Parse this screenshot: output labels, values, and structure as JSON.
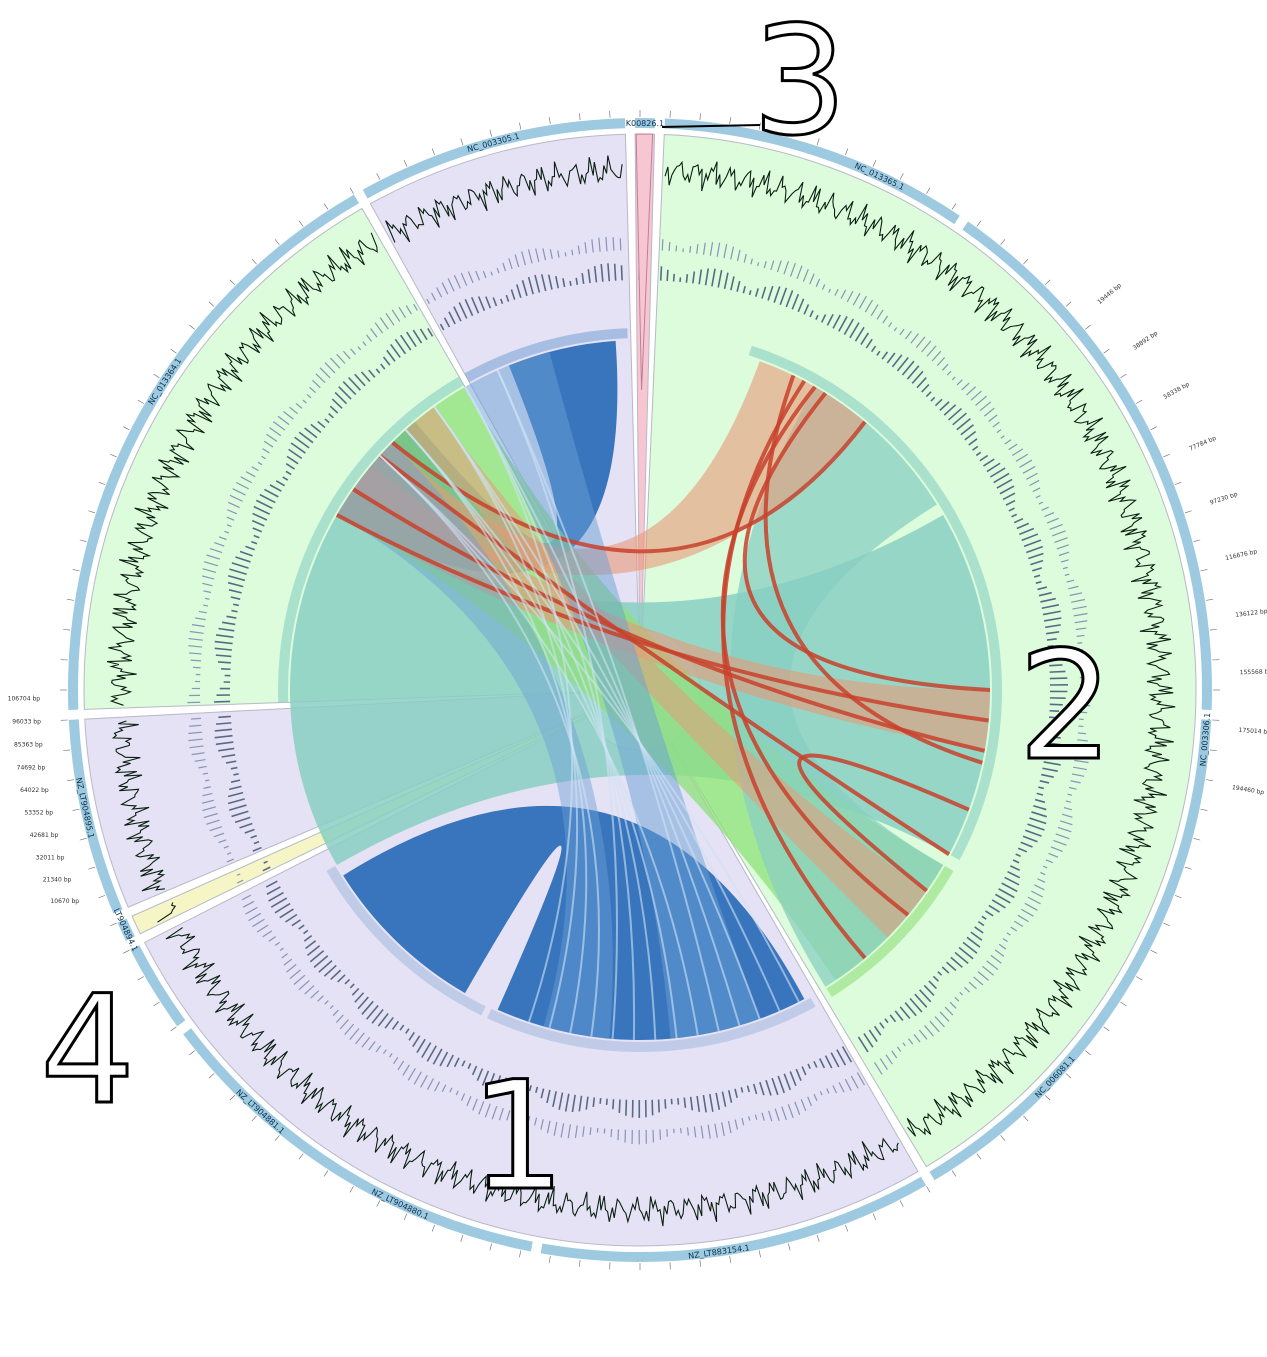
{
  "figure": {
    "region_numbers": [
      "1",
      "2",
      "3",
      "4"
    ]
  },
  "contigs": [
    {
      "name": "NC_003305.1",
      "group": "1"
    },
    {
      "name": "K00826.1",
      "group": "3"
    },
    {
      "name": "NC_013365.1",
      "group": "2"
    },
    {
      "name": "NC_003306.1",
      "group": "2"
    },
    {
      "name": "NC_006081.1",
      "group": "2"
    },
    {
      "name": "NZ_LT883154.1",
      "group": "1"
    },
    {
      "name": "NZ_LT904880.1",
      "group": "1"
    },
    {
      "name": "NZ_LT904881.1",
      "group": "1"
    },
    {
      "name": "LT904894.1",
      "group": "4"
    },
    {
      "name": "NZ_LT904895.1",
      "group": "1"
    },
    {
      "name": "NC_013364.1",
      "group": "2"
    }
  ],
  "tick_labels": {
    "left_column": [
      "106704 bp",
      "96033 bp",
      "85363 bp",
      "74692 bp",
      "64022 bp",
      "53352 bp",
      "42681 bp",
      "32011 bp",
      "21340 bp",
      "10670 bp"
    ],
    "right_column": [
      "19446 bp",
      "38892 bp",
      "58338 bp",
      "77784 bp",
      "97230 bp",
      "116676 bp",
      "136122 bp",
      "155568 bp",
      "175014 bp",
      "194460 bp"
    ]
  },
  "colors": {
    "group_1_band": "#e4e2f4",
    "group_2_band": "#dcfcdc",
    "group_3_band": "#f7c6d3",
    "group_4_band": "#f6f5c5",
    "outer_ring": "#9ecae1",
    "link_blue": "#2f6fb8",
    "link_teal": "#88cfc2",
    "link_green": "#8fe07a",
    "link_salmon": "#e89a78",
    "link_red": "#c8412c"
  }
}
